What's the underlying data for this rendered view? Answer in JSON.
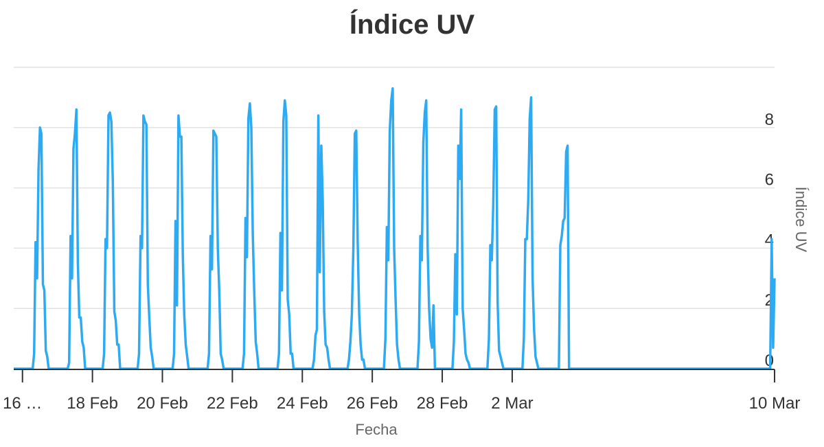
{
  "chart_data": {
    "type": "line",
    "title": "Índice UV",
    "xlabel": "Fecha",
    "ylabel": "Índice UV",
    "ylim": [
      0,
      10
    ],
    "yticks": [
      0,
      2,
      4,
      6,
      8
    ],
    "yaxis_side": "right",
    "grid": true,
    "legend": "none",
    "line_color": "#2eaaf2",
    "grid_color": "#e2e2e2",
    "axis_color": "#333333",
    "xlim": [
      "2025-02-15T18:00",
      "2025-03-09T12:00"
    ],
    "xticks": [
      {
        "x": "2025-02-16",
        "label": "16 …"
      },
      {
        "x": "2025-02-18",
        "label": "18 Feb"
      },
      {
        "x": "2025-02-20",
        "label": "20 Feb"
      },
      {
        "x": "2025-02-22",
        "label": "22 Feb"
      },
      {
        "x": "2025-02-24",
        "label": "24 Feb"
      },
      {
        "x": "2025-02-26",
        "label": "26 Feb"
      },
      {
        "x": "2025-02-28",
        "label": "28 Feb"
      },
      {
        "x": "2025-03-02",
        "label": "2 Mar"
      },
      {
        "x": "2025-03-09T12:00",
        "label": "10 Mar"
      }
    ],
    "days": [
      {
        "date": "2025-02-16",
        "uv": [
          0,
          0,
          0,
          0,
          0,
          0,
          0,
          0,
          0.5,
          4.2,
          3.0,
          6.6,
          8.0,
          7.8,
          2.8,
          2.6,
          0.6,
          0.4,
          0,
          0,
          0,
          0,
          0,
          0
        ]
      },
      {
        "date": "2025-02-17",
        "uv": [
          0,
          0,
          0,
          0,
          0,
          0,
          0,
          0,
          0.2,
          4.4,
          3.0,
          7.3,
          7.8,
          8.6,
          3.5,
          1.7,
          1.7,
          0.9,
          0.7,
          0,
          0,
          0,
          0,
          0
        ]
      },
      {
        "date": "2025-02-18",
        "uv": [
          0,
          0,
          0,
          0,
          0,
          0,
          0,
          0,
          0.5,
          4.3,
          4.0,
          8.4,
          8.5,
          8.2,
          6.2,
          1.9,
          1.6,
          0.8,
          0.8,
          0,
          0,
          0,
          0,
          0
        ]
      },
      {
        "date": "2025-02-19",
        "uv": [
          0,
          0,
          0,
          0,
          0,
          0,
          0,
          0,
          0.5,
          4.4,
          4.0,
          8.4,
          8.2,
          8.1,
          2.8,
          1.7,
          0.7,
          0.4,
          0,
          0,
          0,
          0,
          0,
          0
        ]
      },
      {
        "date": "2025-02-20",
        "uv": [
          0,
          0,
          0,
          0,
          0,
          0,
          0,
          0,
          0.5,
          4.9,
          2.1,
          8.4,
          7.7,
          7.7,
          3.8,
          1.8,
          0.8,
          0.4,
          0,
          0,
          0,
          0,
          0,
          0
        ]
      },
      {
        "date": "2025-02-21",
        "uv": [
          0,
          0,
          0,
          0,
          0,
          0,
          0,
          0,
          0.5,
          4.4,
          3.3,
          7.9,
          7.8,
          7.7,
          4.0,
          2.6,
          0.5,
          0.3,
          0,
          0,
          0,
          0,
          0,
          0
        ]
      },
      {
        "date": "2025-02-22",
        "uv": [
          0,
          0,
          0,
          0,
          0,
          0,
          0,
          0,
          0.5,
          5.0,
          3.7,
          8.3,
          8.8,
          8.0,
          4.5,
          2.6,
          0.9,
          0.5,
          0,
          0,
          0,
          0,
          0,
          0
        ]
      },
      {
        "date": "2025-02-23",
        "uv": [
          0,
          0,
          0,
          0,
          0,
          0,
          0,
          0,
          0.5,
          4.5,
          2.6,
          8.2,
          8.9,
          8.4,
          2.3,
          1.8,
          0.5,
          0.5,
          0,
          0,
          0,
          0,
          0,
          0
        ]
      },
      {
        "date": "2025-02-24",
        "uv": [
          0,
          0,
          0,
          0,
          0,
          0,
          0,
          0,
          0.3,
          1.1,
          1.3,
          8.4,
          3.2,
          7.4,
          5.6,
          1.9,
          0.8,
          0.7,
          0.3,
          0,
          0,
          0,
          0,
          0
        ]
      },
      {
        "date": "2025-02-25",
        "uv": [
          0,
          0,
          0,
          0,
          0,
          0,
          0,
          0,
          0.3,
          0.9,
          1.8,
          4.0,
          7.8,
          7.9,
          4.2,
          1.8,
          0.8,
          0.3,
          0.3,
          0,
          0,
          0,
          0,
          0
        ]
      },
      {
        "date": "2025-02-26",
        "uv": [
          0,
          0,
          0,
          0,
          0,
          0,
          0,
          0,
          0,
          1.0,
          4.7,
          3.6,
          7.9,
          8.9,
          9.3,
          4.0,
          2.3,
          0.8,
          0.3,
          0,
          0,
          0,
          0,
          0
        ]
      },
      {
        "date": "2025-02-27",
        "uv": [
          0,
          0,
          0,
          0,
          0,
          0,
          0,
          0,
          0.9,
          4.4,
          3.6,
          7.5,
          8.5,
          8.9,
          4.0,
          2.0,
          1.0,
          0.7,
          2.1,
          0,
          0,
          0,
          0,
          0
        ]
      },
      {
        "date": "2025-02-28",
        "uv": [
          0,
          0,
          0,
          0,
          0,
          0,
          0,
          0,
          0.9,
          3.8,
          1.8,
          7.4,
          6.3,
          8.6,
          2.0,
          1.3,
          0.5,
          0.3,
          0.2,
          0,
          0,
          0,
          0,
          0
        ]
      },
      {
        "date": "2025-03-01",
        "uv": [
          0,
          0,
          0,
          0,
          0,
          0,
          0,
          0,
          1.0,
          4.1,
          3.6,
          5.4,
          8.6,
          8.7,
          2.2,
          0.6,
          0.4,
          0.2,
          0,
          0,
          0,
          0,
          0,
          0
        ]
      },
      {
        "date": "2025-03-02",
        "uv": [
          0,
          0,
          0,
          0,
          0,
          0,
          0,
          0,
          1.0,
          4.3,
          4.3,
          5.6,
          8.3,
          9.0,
          3.0,
          1.3,
          0.4,
          0.2,
          0,
          0,
          0,
          0,
          0,
          0
        ]
      },
      {
        "date": "2025-03-03",
        "uv": [
          0,
          0,
          0,
          0,
          0,
          0,
          0,
          0,
          0,
          4.1,
          4.4,
          4.9,
          5.0,
          7.2,
          7.4,
          0,
          0,
          0,
          0,
          0,
          0,
          0,
          0,
          0
        ]
      },
      {
        "date": "2025-03-09",
        "uv": [
          0,
          0,
          0,
          0,
          0,
          0,
          0,
          0,
          0,
          0,
          4.3,
          0.7,
          3.0,
          4.8
        ]
      }
    ]
  }
}
